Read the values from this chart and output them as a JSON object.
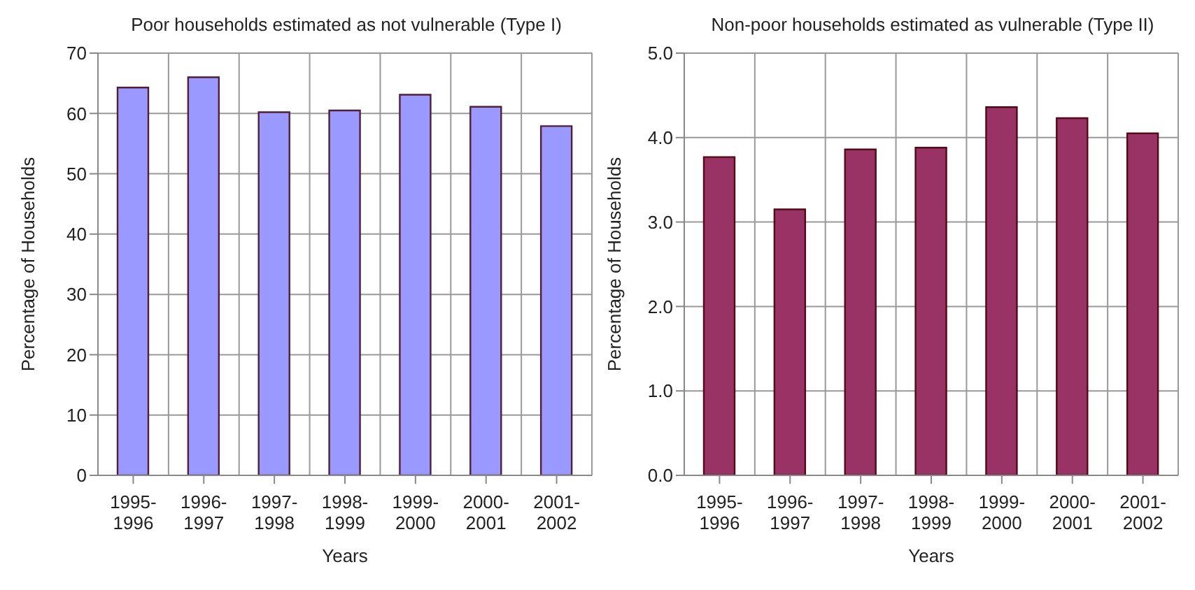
{
  "chart_data": [
    {
      "type": "bar",
      "title": "Poor households estimated as not vulnerable (Type I)",
      "xlabel": "Years",
      "ylabel": "Percentage of Households",
      "categories": [
        "1995-1996",
        "1996-1997",
        "1997-1998",
        "1998-1999",
        "1999-2000",
        "2000-2001",
        "2001-2002"
      ],
      "values": [
        64.3,
        66.0,
        60.2,
        60.5,
        63.1,
        61.1,
        57.9
      ],
      "color": "#9999ff",
      "ylim": [
        0,
        70
      ],
      "yticks": [
        0,
        10,
        20,
        30,
        40,
        50,
        60,
        70
      ],
      "grid": true,
      "legend": false
    },
    {
      "type": "bar",
      "title": "Non-poor households estimated as vulnerable (Type II)",
      "xlabel": "Years",
      "ylabel": "Percentage of Households",
      "categories": [
        "1995-1996",
        "1996-1997",
        "1997-1998",
        "1998-1999",
        "1999-2000",
        "2000-2001",
        "2001-2002"
      ],
      "values": [
        3.77,
        3.15,
        3.86,
        3.88,
        4.36,
        4.23,
        4.05
      ],
      "color": "#993366",
      "ylim": [
        0,
        5
      ],
      "yticks": [
        {
          "value": 0,
          "label": "0.0"
        },
        {
          "value": 1,
          "label": "1.0"
        },
        {
          "value": 2,
          "label": "2.0"
        },
        {
          "value": 3,
          "label": "3.0"
        },
        {
          "value": 4,
          "label": "4.0"
        },
        {
          "value": 5,
          "label": "5.0"
        }
      ],
      "grid": true,
      "legend": false
    }
  ]
}
